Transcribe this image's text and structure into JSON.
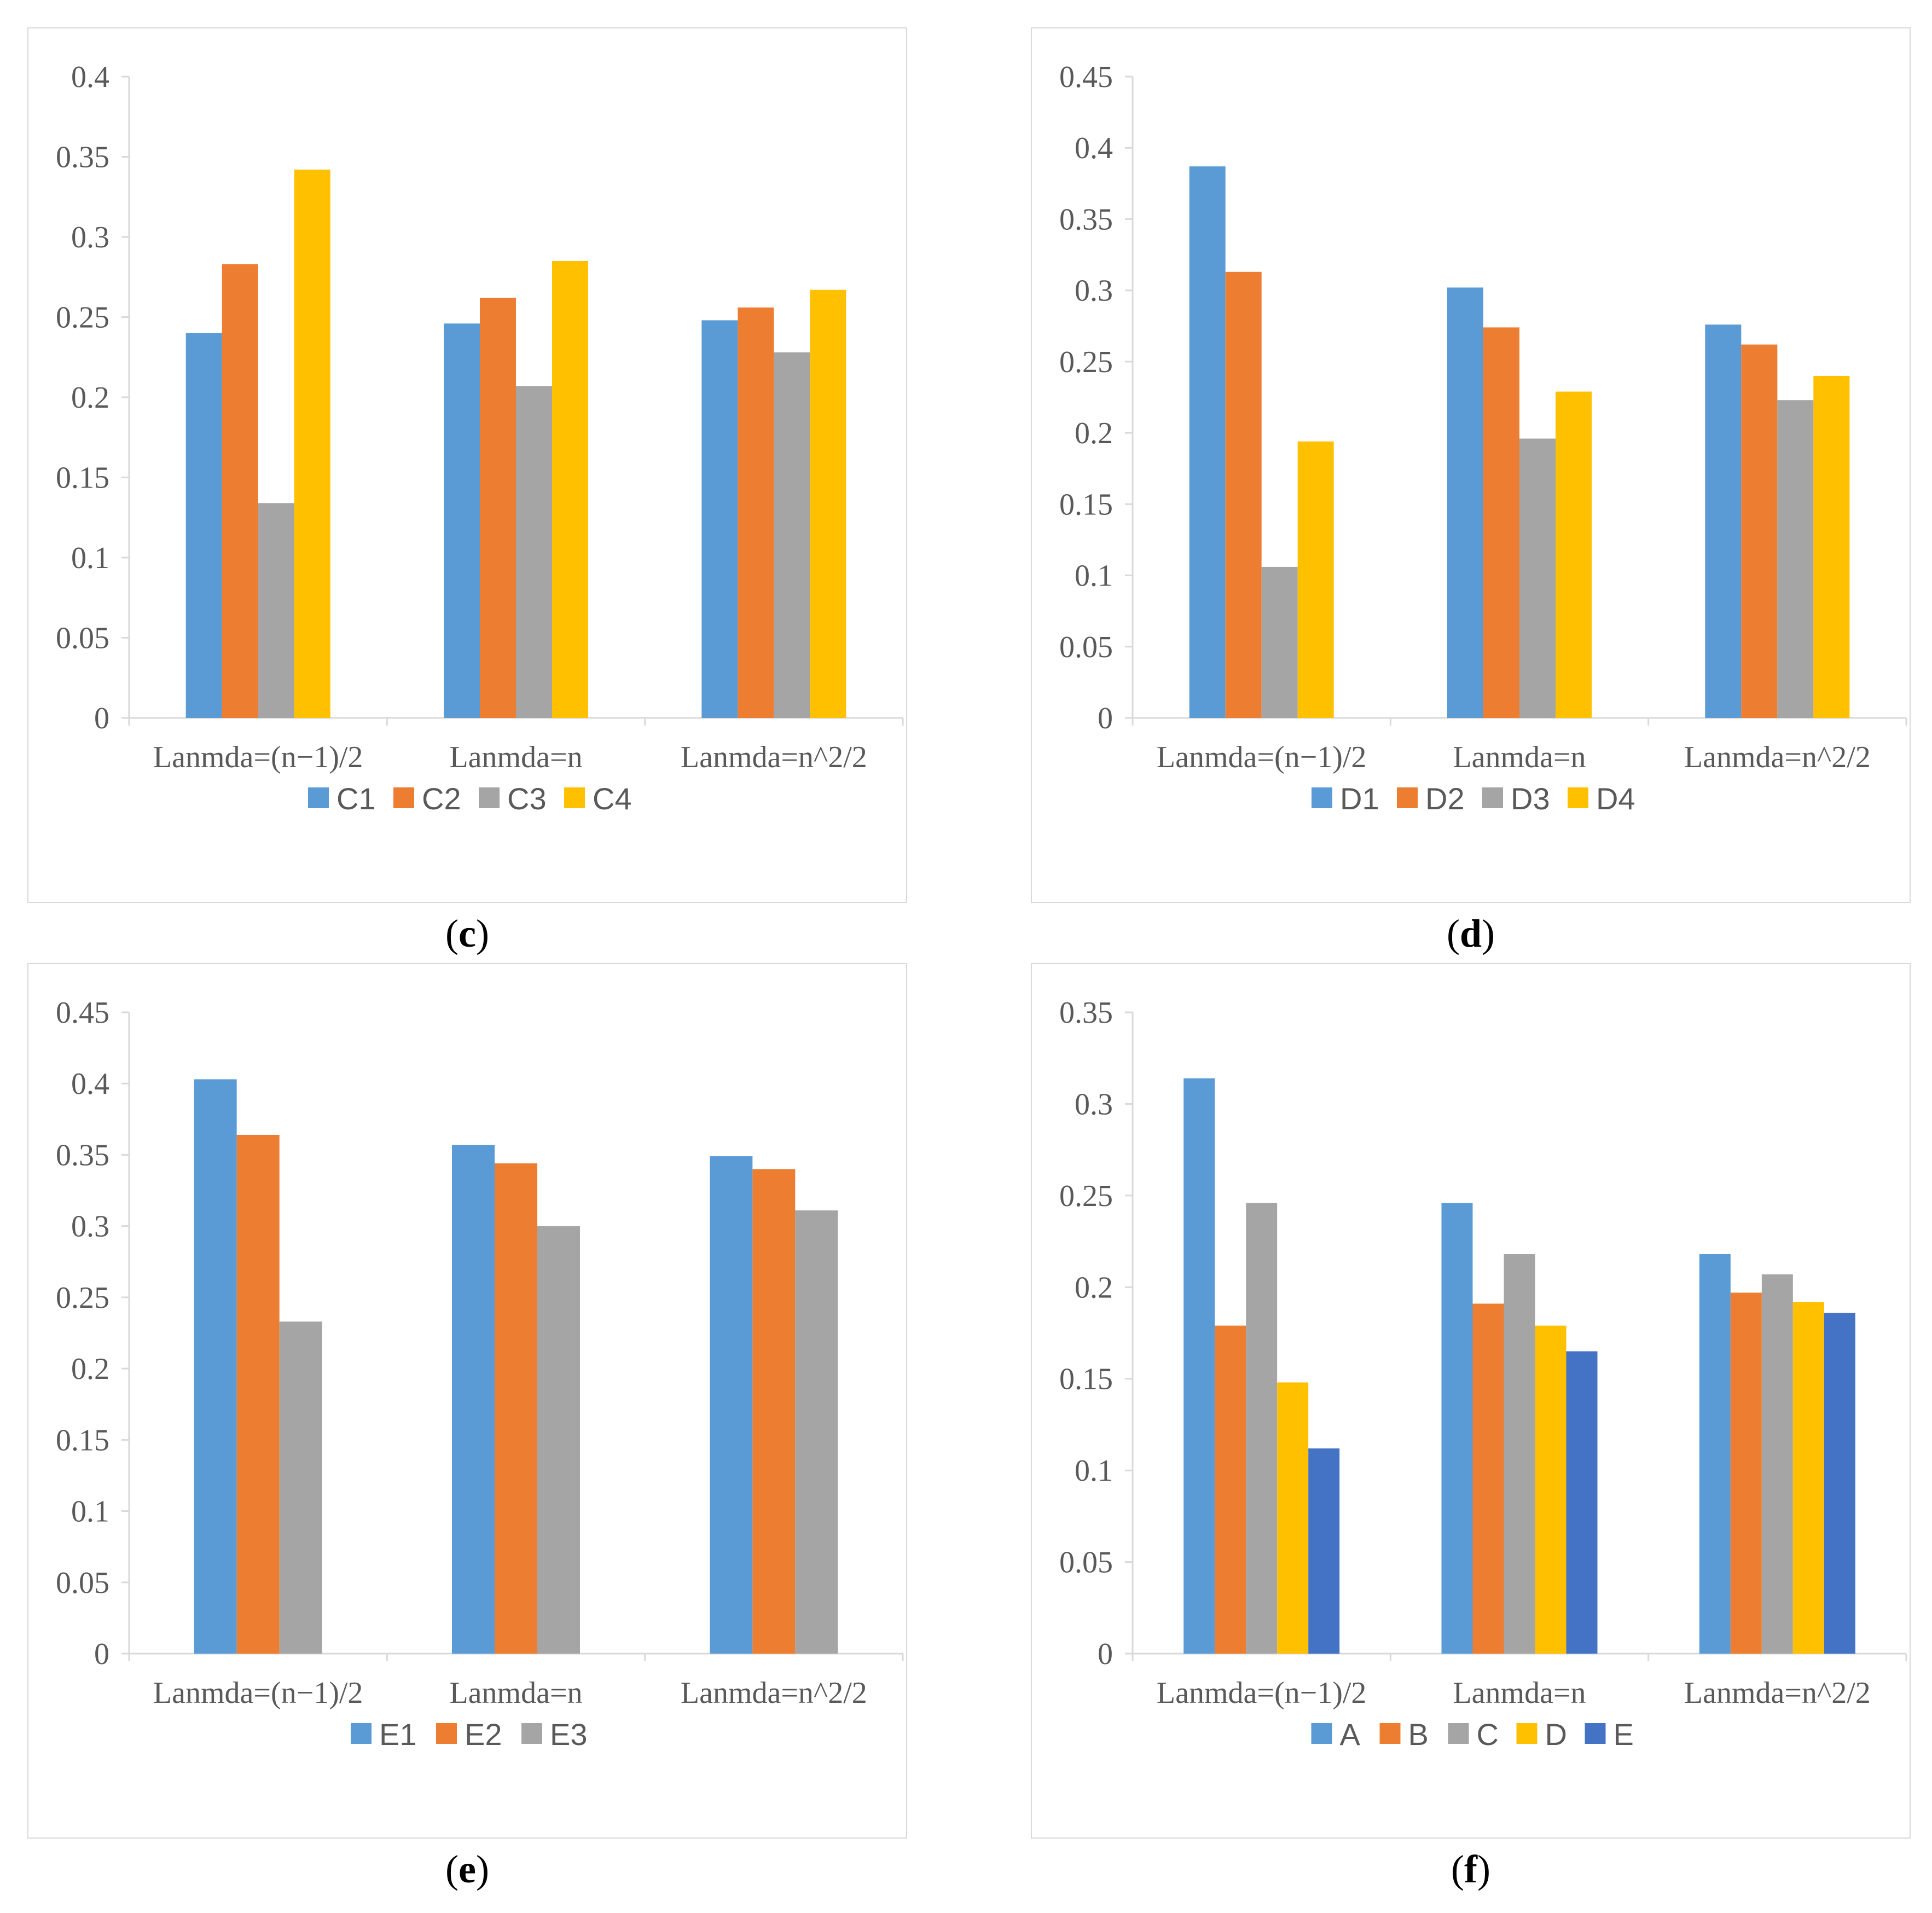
{
  "colors": {
    "blue": "#5b9bd5",
    "orange": "#ed7d31",
    "gray": "#a5a5a5",
    "yellow": "#ffc000",
    "darkblue": "#4472c4",
    "axis": "#d9d9d9",
    "text": "#595959"
  },
  "chart_data": [
    {
      "type": "bar",
      "panel_label": "c",
      "categories": [
        "Lanmda=(n−1)/2",
        "Lanmda=n",
        "Lanmda=n^2/2"
      ],
      "ylim": [
        0,
        0.4
      ],
      "yticks": [
        "0",
        "0.05",
        "0.1",
        "0.15",
        "0.2",
        "0.25",
        "0.3",
        "0.35",
        "0.4"
      ],
      "series": [
        {
          "name": "C1",
          "color": "#5b9bd5",
          "values": [
            0.24,
            0.246,
            0.248
          ]
        },
        {
          "name": "C2",
          "color": "#ed7d31",
          "values": [
            0.283,
            0.262,
            0.256
          ]
        },
        {
          "name": "C3",
          "color": "#a5a5a5",
          "values": [
            0.134,
            0.207,
            0.228
          ]
        },
        {
          "name": "C4",
          "color": "#ffc000",
          "values": [
            0.342,
            0.285,
            0.267
          ]
        }
      ],
      "grid": false,
      "legend": "bottom"
    },
    {
      "type": "bar",
      "panel_label": "d",
      "categories": [
        "Lanmda=(n−1)/2",
        "Lanmda=n",
        "Lanmda=n^2/2"
      ],
      "ylim": [
        0,
        0.45
      ],
      "yticks": [
        "0",
        "0.05",
        "0.1",
        "0.15",
        "0.2",
        "0.25",
        "0.3",
        "0.35",
        "0.4",
        "0.45"
      ],
      "series": [
        {
          "name": "D1",
          "color": "#5b9bd5",
          "values": [
            0.387,
            0.302,
            0.276
          ]
        },
        {
          "name": "D2",
          "color": "#ed7d31",
          "values": [
            0.313,
            0.274,
            0.262
          ]
        },
        {
          "name": "D3",
          "color": "#a5a5a5",
          "values": [
            0.106,
            0.196,
            0.223
          ]
        },
        {
          "name": "D4",
          "color": "#ffc000",
          "values": [
            0.194,
            0.229,
            0.24
          ]
        }
      ],
      "grid": false,
      "legend": "bottom"
    },
    {
      "type": "bar",
      "panel_label": "e",
      "categories": [
        "Lanmda=(n−1)/2",
        "Lanmda=n",
        "Lanmda=n^2/2"
      ],
      "ylim": [
        0,
        0.45
      ],
      "yticks": [
        "0",
        "0.05",
        "0.1",
        "0.15",
        "0.2",
        "0.25",
        "0.3",
        "0.35",
        "0.4",
        "0.45"
      ],
      "series": [
        {
          "name": "E1",
          "color": "#5b9bd5",
          "values": [
            0.403,
            0.357,
            0.349
          ]
        },
        {
          "name": "E2",
          "color": "#ed7d31",
          "values": [
            0.364,
            0.344,
            0.34
          ]
        },
        {
          "name": "E3",
          "color": "#a5a5a5",
          "values": [
            0.233,
            0.3,
            0.311
          ]
        }
      ],
      "grid": false,
      "legend": "bottom"
    },
    {
      "type": "bar",
      "panel_label": "f",
      "categories": [
        "Lanmda=(n−1)/2",
        "Lanmda=n",
        "Lanmda=n^2/2"
      ],
      "ylim": [
        0,
        0.35
      ],
      "yticks": [
        "0",
        "0.05",
        "0.1",
        "0.15",
        "0.2",
        "0.25",
        "0.3",
        "0.35"
      ],
      "series": [
        {
          "name": "A",
          "color": "#5b9bd5",
          "values": [
            0.314,
            0.246,
            0.218
          ]
        },
        {
          "name": "B",
          "color": "#ed7d31",
          "values": [
            0.179,
            0.191,
            0.197
          ]
        },
        {
          "name": "C",
          "color": "#a5a5a5",
          "values": [
            0.246,
            0.218,
            0.207
          ]
        },
        {
          "name": "D",
          "color": "#ffc000",
          "values": [
            0.148,
            0.179,
            0.192
          ]
        },
        {
          "name": "E",
          "color": "#4472c4",
          "values": [
            0.112,
            0.165,
            0.186
          ]
        }
      ],
      "grid": false,
      "legend": "bottom"
    }
  ]
}
